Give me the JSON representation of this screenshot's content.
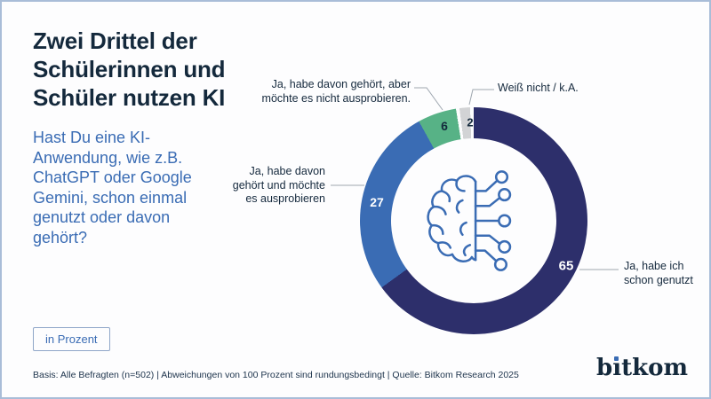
{
  "page": {
    "background": "#FDFDFE",
    "border_color": "#A9BDD8",
    "accent_color": "#3A6CB4",
    "text_color": "#14293C"
  },
  "header": {
    "title": "Zwei Drittel der Schülerinnen und Schüler nutzen KI",
    "question": "Hast Du eine KI-Anwendung, wie z.B. ChatGPT oder Google Gemini, schon einmal genutzt oder davon gehört?"
  },
  "badge": {
    "label": "in Prozent"
  },
  "footer": {
    "source": "Basis: Alle Befragten (n=502) | Abweichungen von 100 Prozent sind rundungsbedingt | Quelle: Bitkom Research 2025",
    "logo": "bitkom"
  },
  "icons": {
    "center": "ai-brain-circuit-icon"
  },
  "chart_data": {
    "type": "pie",
    "variant": "donut",
    "title": "Zwei Drittel der Schülerinnen und Schüler nutzen KI",
    "unit": "in Prozent",
    "start_angle_deg": 0,
    "direction": "clockwise",
    "series": [
      {
        "label": "Ja, habe ich schon genutzt",
        "value": 65,
        "color": "#2D2F6B"
      },
      {
        "label": "Ja, habe davon gehört und möchte es ausprobieren",
        "value": 27,
        "color": "#3A6CB4"
      },
      {
        "label": "Ja, habe davon gehört, aber möchte es nicht ausprobieren.",
        "value": 6,
        "color": "#57B286"
      },
      {
        "label": "Weiß nicht / k.A.",
        "value": 2,
        "color": "#D2D3D5"
      }
    ]
  }
}
